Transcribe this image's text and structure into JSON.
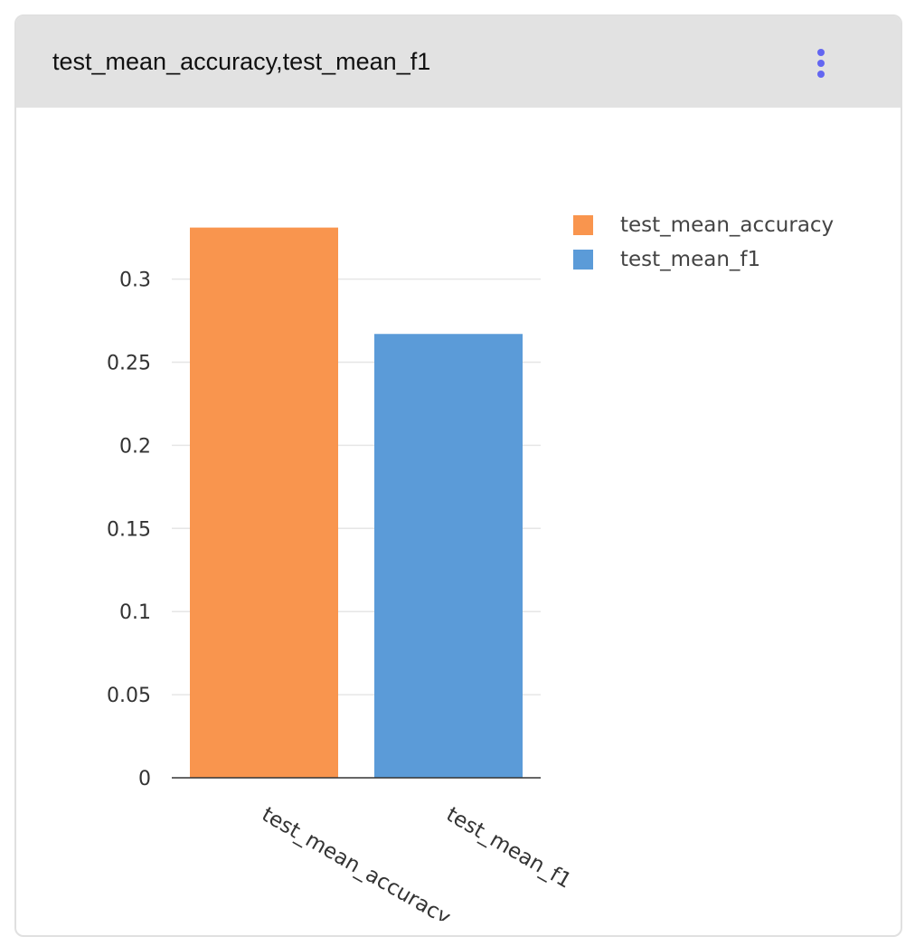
{
  "header": {
    "title": "test_mean_accuracy,test_mean_f1",
    "menu_icon": "more-vertical-icon",
    "menu_color": "#6366f1"
  },
  "chart_data": {
    "type": "bar",
    "categories": [
      "test_mean_accuracy",
      "test_mean_f1"
    ],
    "values": [
      0.331,
      0.267
    ],
    "colors": [
      "#f9954e",
      "#5b9bd8"
    ],
    "ylim": [
      0,
      0.33
    ],
    "yticks": [
      0,
      0.05,
      0.1,
      0.15,
      0.2,
      0.25,
      0.3
    ],
    "ytick_labels": [
      "0",
      "0.05",
      "0.1",
      "0.15",
      "0.2",
      "0.25",
      "0.3"
    ],
    "grid": true,
    "legend_position": "top-right",
    "legend": [
      {
        "label": "test_mean_accuracy",
        "color": "#f9954e"
      },
      {
        "label": "test_mean_f1",
        "color": "#5b9bd8"
      }
    ],
    "title": "",
    "xlabel": "",
    "ylabel": ""
  }
}
